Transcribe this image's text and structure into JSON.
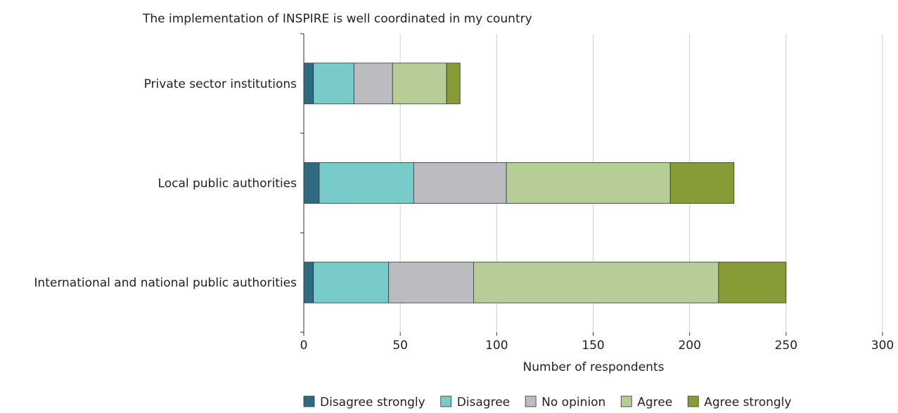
{
  "chart_data": {
    "type": "bar",
    "orientation": "horizontal",
    "stacked": true,
    "title": "The implementation of INSPIRE is well coordinated in my country",
    "xlabel": "Number of respondents",
    "ylabel": "",
    "xlim": [
      0,
      300
    ],
    "x_ticks": [
      "0",
      "50",
      "100",
      "150",
      "200",
      "250",
      "300"
    ],
    "categories": [
      "Private sector institutions",
      "Local public authorities",
      "International and national public authorities"
    ],
    "series": [
      {
        "name": "Disagree strongly",
        "color": "#2e6b80",
        "values": [
          5,
          8,
          5
        ]
      },
      {
        "name": "Disagree",
        "color": "#78cbc8",
        "values": [
          21,
          49,
          39
        ]
      },
      {
        "name": "No opinion",
        "color": "#bbbcc0",
        "values": [
          20,
          48,
          44
        ]
      },
      {
        "name": "Agree",
        "color": "#b6cd98",
        "values": [
          28,
          85,
          127
        ]
      },
      {
        "name": "Agree strongly",
        "color": "#879c37",
        "values": [
          7,
          33,
          35
        ]
      }
    ],
    "grid": "vertical",
    "legend_position": "bottom"
  }
}
